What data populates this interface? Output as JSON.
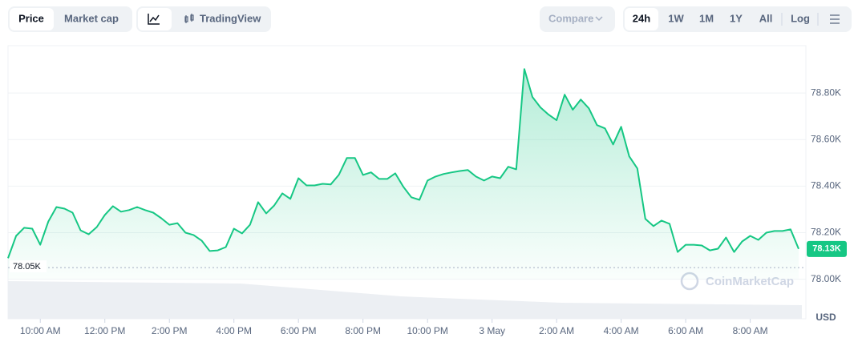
{
  "toolbar": {
    "price": "Price",
    "market_cap": "Market cap",
    "tradingview": "TradingView",
    "compare": "Compare",
    "ranges": [
      "24h",
      "1W",
      "1M",
      "1Y",
      "All"
    ],
    "log": "Log"
  },
  "chart_data": {
    "type": "line",
    "color": "#16c784",
    "x": [
      9,
      9.25,
      9.5,
      9.75,
      10,
      10.25,
      10.5,
      10.75,
      11,
      11.25,
      11.5,
      11.75,
      12,
      12.25,
      12.5,
      12.75,
      13,
      13.25,
      13.5,
      13.75,
      14,
      14.25,
      14.5,
      14.75,
      15,
      15.25,
      15.5,
      15.75,
      16,
      16.25,
      16.5,
      16.75,
      17,
      17.25,
      17.5,
      17.75,
      18,
      18.25,
      18.5,
      18.75,
      19,
      19.25,
      19.5,
      19.75,
      20,
      20.25,
      20.5,
      20.75,
      21,
      21.25,
      21.5,
      21.75,
      22,
      22.25,
      22.5,
      22.75,
      23,
      23.25,
      23.5,
      23.75,
      24,
      24.25,
      24.5,
      24.75,
      25,
      25.25,
      25.5,
      25.75,
      26,
      26.25,
      26.5,
      26.75,
      27,
      27.25,
      27.5,
      27.75,
      28,
      28.25,
      28.5,
      28.75,
      29,
      29.25,
      29.5,
      29.75,
      30,
      30.25,
      30.5,
      30.75,
      31,
      31.25,
      31.5,
      31.75,
      32,
      32.25,
      32.5,
      32.75,
      33,
      33.25,
      33.5
    ],
    "values": [
      78090,
      78186,
      78221,
      78217,
      78148,
      78248,
      78310,
      78303,
      78286,
      78210,
      78193,
      78224,
      78276,
      78314,
      78290,
      78297,
      78310,
      78297,
      78286,
      78262,
      78234,
      78241,
      78200,
      78190,
      78166,
      78121,
      78124,
      78138,
      78217,
      78197,
      78234,
      78331,
      78283,
      78317,
      78369,
      78345,
      78434,
      78403,
      78403,
      78410,
      78407,
      78448,
      78521,
      78521,
      78448,
      78459,
      78431,
      78431,
      78455,
      78397,
      78352,
      78341,
      78424,
      78441,
      78452,
      78459,
      78465,
      78469,
      78441,
      78424,
      78441,
      78434,
      78483,
      78472,
      78903,
      78783,
      78738,
      78707,
      78683,
      78793,
      78728,
      78772,
      78734,
      78662,
      78648,
      78579,
      78655,
      78528,
      78476,
      78259,
      78228,
      78252,
      78238,
      78117,
      78148,
      78148,
      78145,
      78124,
      78131,
      78179,
      78117,
      78162,
      78186,
      78169,
      78200,
      78207,
      78207,
      78214,
      78130
    ],
    "xlim": [
      9,
      33.6
    ],
    "xticks": [
      {
        "value": 10,
        "label": "10:00 AM"
      },
      {
        "value": 12,
        "label": "12:00 PM"
      },
      {
        "value": 14,
        "label": "2:00 PM"
      },
      {
        "value": 16,
        "label": "4:00 PM"
      },
      {
        "value": 18,
        "label": "6:00 PM"
      },
      {
        "value": 20,
        "label": "8:00 PM"
      },
      {
        "value": 22,
        "label": "10:00 PM"
      },
      {
        "value": 24,
        "label": "3 May"
      },
      {
        "value": 26,
        "label": "2:00 AM"
      },
      {
        "value": 28,
        "label": "4:00 AM"
      },
      {
        "value": 30,
        "label": "6:00 AM"
      },
      {
        "value": 32,
        "label": "8:00 AM"
      }
    ],
    "ylim": [
      77830,
      79000
    ],
    "yticks": [
      {
        "value": 78000,
        "label": "78.00K"
      },
      {
        "value": 78200,
        "label": "78.20K"
      },
      {
        "value": 78400,
        "label": "78.40K"
      },
      {
        "value": 78600,
        "label": "78.60K"
      },
      {
        "value": 78800,
        "label": "78.80K"
      }
    ],
    "reference_line": {
      "value": 78050,
      "label": "78.05K"
    },
    "current_label": "78.13K",
    "y_unit": "USD",
    "watermark": "CoinMarketCap",
    "grid": true
  }
}
